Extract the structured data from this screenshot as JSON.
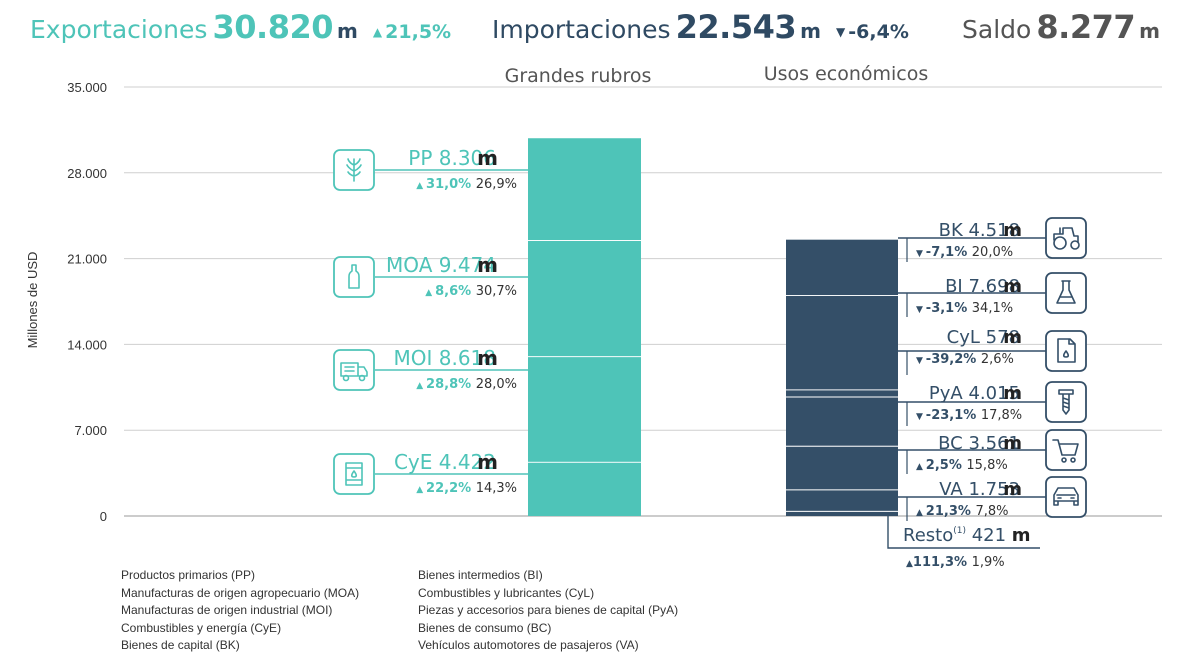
{
  "header": {
    "exports": {
      "label": "Exportaciones",
      "value": "30.820",
      "unit": "m",
      "change": "21,5%",
      "direction": "up"
    },
    "imports": {
      "label": "Importaciones",
      "value": "22.543",
      "unit": "m",
      "change": "-6,4%",
      "direction": "down"
    },
    "balance": {
      "label": "Saldo",
      "value": "8.277",
      "unit": "m"
    }
  },
  "colors": {
    "exports": "#4ec4b8",
    "imports": "#344f68",
    "gray_text": "#545454"
  },
  "chart_data": {
    "type": "bar",
    "subtype": "stacked",
    "ylabel": "Millones de USD",
    "ylim": [
      0,
      35000
    ],
    "yticks": [
      "0",
      "7.000",
      "14.000",
      "21.000",
      "28.000",
      "35.000"
    ],
    "ytick_values": [
      0,
      7000,
      14000,
      21000,
      28000,
      35000
    ],
    "grid": true,
    "categories": [
      "Grandes rubros",
      "Usos económicos"
    ],
    "stacks": [
      {
        "category": "Grandes rubros",
        "segments": [
          {
            "code": "CyE",
            "value": 4422,
            "value_label": "4.422",
            "change": "22,2%",
            "direction": "up",
            "share": "14,3%",
            "icon": "oil-barrel-icon"
          },
          {
            "code": "MOI",
            "value": 8618,
            "value_label": "8.618",
            "change": "28,8%",
            "direction": "up",
            "share": "28,0%",
            "icon": "truck-icon"
          },
          {
            "code": "MOA",
            "value": 9474,
            "value_label": "9.474",
            "change": "8,6%",
            "direction": "up",
            "share": "30,7%",
            "icon": "bottle-icon"
          },
          {
            "code": "PP",
            "value": 8306,
            "value_label": "8.306",
            "change": "31,0%",
            "direction": "up",
            "share": "26,9%",
            "icon": "wheat-icon"
          }
        ]
      },
      {
        "category": "Usos económicos",
        "segments": [
          {
            "code": "Resto",
            "note": "(1)",
            "value": 421,
            "value_label": "421",
            "change": "111,3%",
            "direction": "up",
            "share": "1,9%"
          },
          {
            "code": "VA",
            "value": 1753,
            "value_label": "1.753",
            "change": "21,3%",
            "direction": "up",
            "share": "7,8%",
            "icon": "car-icon"
          },
          {
            "code": "BC",
            "value": 3561,
            "value_label": "3.561",
            "change": "2,5%",
            "direction": "up",
            "share": "15,8%",
            "icon": "shopping-cart-icon"
          },
          {
            "code": "PyA",
            "value": 4015,
            "value_label": "4.015",
            "change": "-23,1%",
            "direction": "down",
            "share": "17,8%",
            "icon": "screw-icon"
          },
          {
            "code": "CyL",
            "value": 578,
            "value_label": "578",
            "change": "-39,2%",
            "direction": "down",
            "share": "2,6%",
            "icon": "fuel-can-icon"
          },
          {
            "code": "BI",
            "value": 7698,
            "value_label": "7.698",
            "change": "-3,1%",
            "direction": "down",
            "share": "34,1%",
            "icon": "flask-icon"
          },
          {
            "code": "BK",
            "value": 4518,
            "value_label": "4.518",
            "change": "-7,1%",
            "direction": "down",
            "share": "20,0%",
            "icon": "tractor-icon"
          }
        ]
      }
    ],
    "unit_suffix": "m"
  },
  "legend": {
    "left": [
      "Productos primarios (PP)",
      "Manufacturas de origen agropecuario (MOA)",
      "Manufacturas de origen industrial (MOI)",
      "Combustibles y energía (CyE)",
      "Bienes de capital (BK)"
    ],
    "right": [
      "Bienes intermedios (BI)",
      "Combustibles y lubricantes (CyL)",
      "Piezas y accesorios para bienes de capital (PyA)",
      "Bienes de consumo (BC)",
      "Vehículos automotores de pasajeros (VA)"
    ]
  }
}
